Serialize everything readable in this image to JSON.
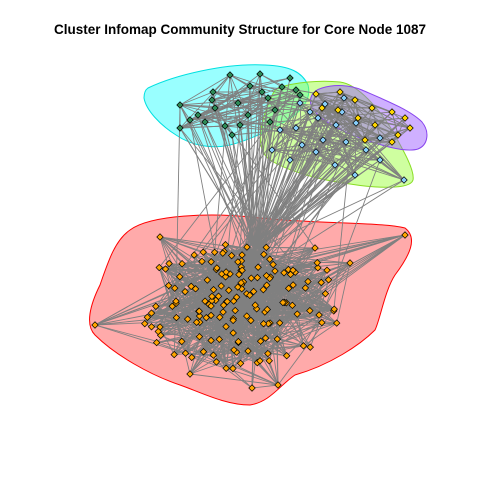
{
  "title": "Cluster Infomap Community Structure for Core Node 1087",
  "communities": [
    {
      "id": "orange-community",
      "fill": "#ff000055",
      "stroke": "#ff0000",
      "node_color": "#ffa500",
      "node_count": 170
    },
    {
      "id": "cyan-community",
      "fill": "#00ffff66",
      "stroke": "#00e0e0",
      "node_color": "#2e8b57",
      "node_count": 24
    },
    {
      "id": "green-community",
      "fill": "#99ff3377",
      "stroke": "#88dd22",
      "node_color": "#87cefa",
      "node_count": 22
    },
    {
      "id": "purple-community",
      "fill": "#9955ff77",
      "stroke": "#8844ee",
      "node_color": "#ffd700",
      "node_count": 14
    }
  ],
  "colors": {
    "edge": "#808080",
    "node_border": "#000000"
  }
}
